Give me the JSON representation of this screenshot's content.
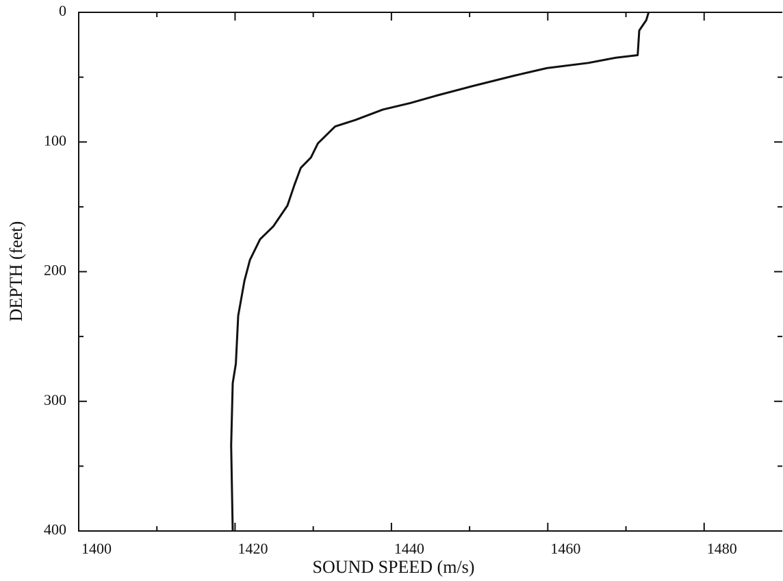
{
  "chart_data": {
    "type": "line",
    "x_label": "SOUND SPEED (m/s)",
    "y_label": "DEPTH (feet)",
    "x": [
      1472.9,
      1472.6,
      1471.7,
      1471.5,
      1468.7,
      1465.2,
      1459.9,
      1455.6,
      1450.3,
      1445.9,
      1442.4,
      1438.9,
      1435.4,
      1432.8,
      1430.6,
      1429.7,
      1428.4,
      1427.6,
      1426.7,
      1424.9,
      1423.2,
      1421.9,
      1421.2,
      1420.4,
      1420.1,
      1419.7,
      1419.5,
      1419.7
    ],
    "values": [
      0,
      6,
      14,
      33,
      35,
      39,
      43,
      49,
      57,
      64,
      70,
      75,
      83,
      88,
      101,
      112,
      120,
      133,
      149,
      165,
      175,
      191,
      207,
      234,
      271,
      286,
      334,
      400
    ],
    "color": "#111111",
    "xlim": [
      1400,
      1490
    ],
    "xticks": [
      1400,
      1420,
      1440,
      1460,
      1480
    ],
    "x_minor_ticks": [
      1410,
      1430,
      1450,
      1470
    ],
    "ylim": [
      0,
      400
    ],
    "y_inverted": true,
    "yticks": [
      0,
      100,
      200,
      300,
      400
    ],
    "y_minor_ticks": [
      50,
      150,
      250,
      350
    ],
    "grid": false
  }
}
